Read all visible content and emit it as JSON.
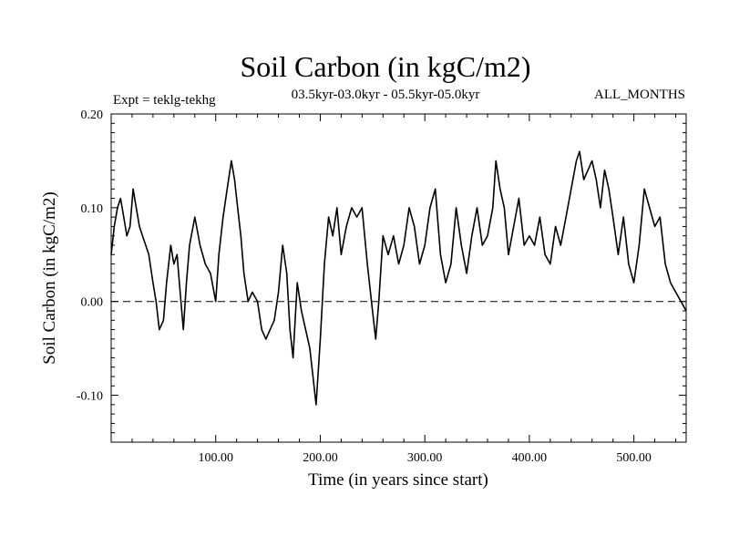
{
  "chart_data": {
    "type": "line",
    "title": "Soil Carbon (in kgC/m2)",
    "subtitle": "03.5kyr-03.0kyr - 05.5kyr-05.0kyr",
    "left_label": "Expt = teklg-tekhg",
    "right_label": "ALL_MONTHS",
    "xlabel": "Time (in years since start)",
    "ylabel": "Soil Carbon (in kgC/m2)",
    "xlim": [
      0,
      550
    ],
    "ylim": [
      -0.15,
      0.2
    ],
    "x_ticks": [
      100,
      200,
      300,
      400,
      500
    ],
    "x_tick_labels": [
      "100.00",
      "200.00",
      "300.00",
      "400.00",
      "500.00"
    ],
    "y_ticks": [
      -0.1,
      0.0,
      0.1,
      0.2
    ],
    "y_tick_labels": [
      "-0.10",
      "0.00",
      "0.10",
      "0.20"
    ],
    "reference_line": {
      "y": 0.0,
      "style": "dashed"
    },
    "series": [
      {
        "name": "teklg-tekhg",
        "x": [
          0,
          3,
          6,
          9,
          12,
          15,
          18,
          21,
          24,
          27,
          30,
          33,
          36,
          40,
          43,
          46,
          50,
          53,
          57,
          60,
          63,
          66,
          69,
          72,
          75,
          80,
          85,
          90,
          95,
          100,
          103,
          107,
          111,
          115,
          118,
          121,
          124,
          127,
          131,
          135,
          140,
          144,
          148,
          152,
          156,
          160,
          164,
          168,
          171,
          174,
          178,
          182,
          186,
          190,
          194,
          196,
          200,
          204,
          208,
          212,
          216,
          220,
          225,
          230,
          235,
          240,
          245,
          250,
          253,
          256,
          260,
          265,
          270,
          275,
          280,
          285,
          290,
          295,
          300,
          305,
          310,
          315,
          320,
          325,
          330,
          335,
          340,
          345,
          350,
          355,
          360,
          365,
          368,
          372,
          376,
          380,
          385,
          390,
          395,
          400,
          405,
          410,
          415,
          420,
          425,
          430,
          435,
          440,
          445,
          448,
          452,
          456,
          460,
          464,
          468,
          472,
          476,
          480,
          485,
          490,
          495,
          500,
          505,
          510,
          515,
          520,
          525,
          530,
          535,
          540,
          545,
          550
        ],
        "values": [
          0.05,
          0.08,
          0.1,
          0.11,
          0.09,
          0.07,
          0.08,
          0.12,
          0.1,
          0.08,
          0.07,
          0.06,
          0.05,
          0.02,
          0.0,
          -0.03,
          -0.02,
          0.02,
          0.06,
          0.04,
          0.05,
          0.01,
          -0.03,
          0.02,
          0.06,
          0.09,
          0.06,
          0.04,
          0.03,
          0.0,
          0.05,
          0.09,
          0.12,
          0.15,
          0.13,
          0.1,
          0.07,
          0.03,
          0.0,
          0.01,
          0.0,
          -0.03,
          -0.04,
          -0.03,
          -0.02,
          0.01,
          0.06,
          0.03,
          -0.03,
          -0.06,
          0.02,
          -0.01,
          -0.03,
          -0.05,
          -0.09,
          -0.11,
          -0.04,
          0.04,
          0.09,
          0.07,
          0.1,
          0.05,
          0.08,
          0.1,
          0.09,
          0.1,
          0.04,
          -0.01,
          -0.04,
          0.0,
          0.07,
          0.05,
          0.07,
          0.04,
          0.06,
          0.1,
          0.08,
          0.04,
          0.06,
          0.1,
          0.12,
          0.05,
          0.02,
          0.04,
          0.1,
          0.06,
          0.03,
          0.07,
          0.1,
          0.06,
          0.07,
          0.1,
          0.15,
          0.12,
          0.1,
          0.05,
          0.08,
          0.11,
          0.06,
          0.07,
          0.06,
          0.09,
          0.05,
          0.04,
          0.08,
          0.06,
          0.09,
          0.12,
          0.15,
          0.16,
          0.13,
          0.14,
          0.15,
          0.13,
          0.1,
          0.14,
          0.12,
          0.09,
          0.05,
          0.09,
          0.04,
          0.02,
          0.06,
          0.12,
          0.1,
          0.08,
          0.09,
          0.04,
          0.02,
          0.01,
          0.0,
          -0.01
        ]
      }
    ]
  }
}
